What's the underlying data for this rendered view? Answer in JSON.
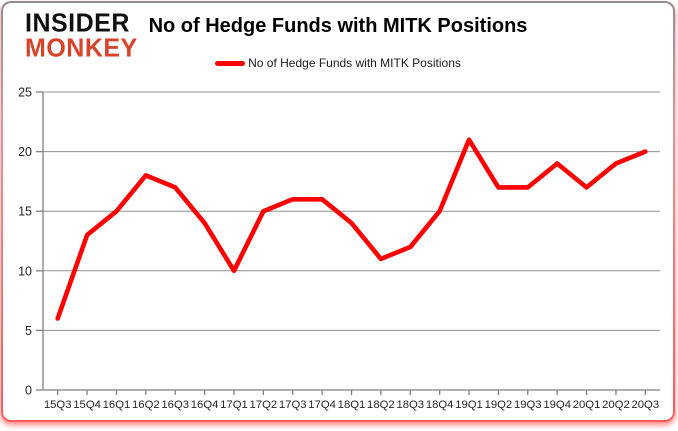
{
  "logo": {
    "line1": "INSIDER",
    "line2": "MONKEY"
  },
  "header": {
    "title": "No of Hedge Funds with MITK Positions"
  },
  "legend": {
    "label": "No of Hedge Funds with MITK Positions"
  },
  "colors": {
    "line": "#ff0000",
    "grid": "#909090",
    "axis": "#808080",
    "tick_label": "#262626",
    "title": "#000000",
    "logo_black": "#111111",
    "logo_red": "#d8432c",
    "border_glow": "#ff5a5a"
  },
  "chart_data": {
    "type": "line",
    "title": "No of Hedge Funds with MITK Positions",
    "series": [
      {
        "name": "No of Hedge Funds with MITK Positions",
        "values": [
          6,
          13,
          15,
          18,
          17,
          14,
          10,
          15,
          16,
          16,
          14,
          11,
          12,
          15,
          21,
          17,
          17,
          19,
          17,
          19,
          20
        ]
      }
    ],
    "categories": [
      "15Q3",
      "15Q4",
      "16Q1",
      "16Q2",
      "16Q3",
      "16Q4",
      "17Q1",
      "17Q2",
      "17Q3",
      "17Q4",
      "18Q1",
      "18Q2",
      "18Q3",
      "18Q4",
      "19Q1",
      "19Q2",
      "19Q3",
      "19Q4",
      "20Q1",
      "20Q2",
      "20Q3"
    ],
    "xlabel": "",
    "ylabel": "",
    "ylim": [
      0,
      25
    ],
    "yticks": [
      0,
      5,
      10,
      15,
      20,
      25
    ],
    "grid": true,
    "legend_position": "top"
  }
}
